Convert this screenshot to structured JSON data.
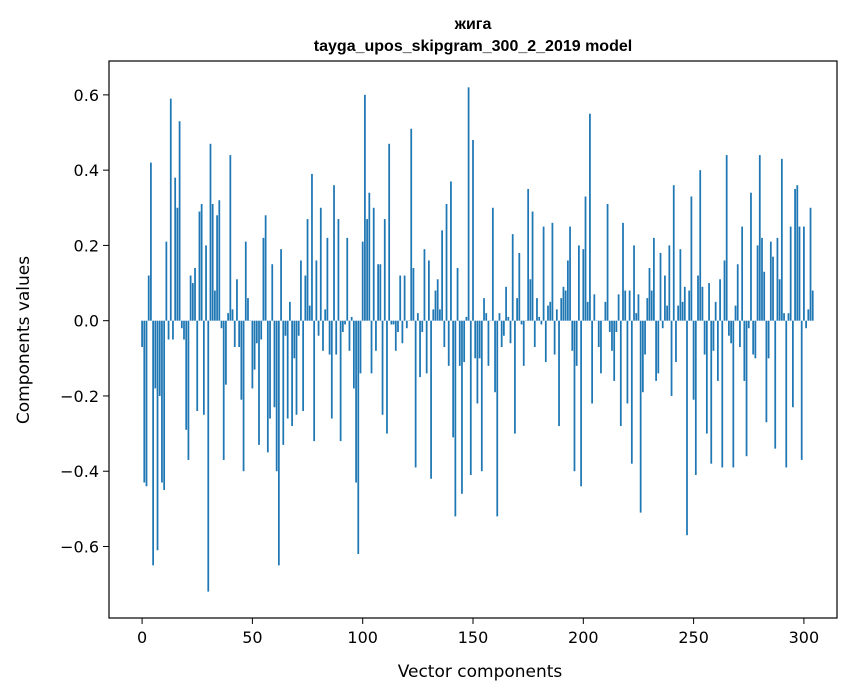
{
  "chart_data": {
    "type": "bar",
    "title": "жига",
    "subtitle": "tayga_upos_skipgram_300_2_2019 model",
    "xlabel": "Vector components",
    "ylabel": "Components values",
    "xlim": [
      -15,
      315
    ],
    "ylim": [
      -0.79,
      0.69
    ],
    "x_ticks": [
      0,
      50,
      100,
      150,
      200,
      250,
      300
    ],
    "x_tick_labels": [
      "0",
      "50",
      "100",
      "150",
      "200",
      "250",
      "300"
    ],
    "y_ticks": [
      -0.6,
      -0.4,
      -0.2,
      0.0,
      0.2,
      0.4,
      0.6
    ],
    "y_tick_labels": [
      "−0.6",
      "−0.4",
      "−0.2",
      "0.0",
      "0.2",
      "0.4",
      "0.6"
    ],
    "grid": false,
    "legend": "none",
    "bar_color": "#1f77b4",
    "values": [
      -0.07,
      -0.43,
      -0.44,
      0.12,
      0.42,
      -0.65,
      -0.18,
      -0.61,
      -0.2,
      -0.43,
      -0.45,
      0.21,
      -0.05,
      0.59,
      -0.05,
      0.38,
      0.3,
      0.53,
      -0.02,
      -0.05,
      -0.29,
      -0.37,
      0.12,
      0.1,
      0.14,
      -0.24,
      0.29,
      0.31,
      -0.25,
      0.2,
      -0.72,
      0.47,
      0.31,
      0.08,
      0.28,
      0.32,
      -0.02,
      -0.37,
      -0.17,
      0.02,
      0.44,
      0.03,
      -0.07,
      0.11,
      -0.07,
      -0.21,
      -0.4,
      0.21,
      0.06,
      0.0,
      -0.18,
      -0.13,
      -0.06,
      -0.33,
      -0.05,
      0.22,
      0.28,
      -0.35,
      -0.26,
      0.15,
      -0.23,
      -0.4,
      -0.65,
      0.19,
      -0.33,
      -0.04,
      -0.26,
      0.05,
      -0.28,
      -0.1,
      -0.25,
      -0.04,
      0.16,
      -0.24,
      0.12,
      0.27,
      0.04,
      0.39,
      -0.32,
      0.16,
      -0.04,
      0.3,
      -0.08,
      0.03,
      0.22,
      -0.09,
      -0.26,
      0.36,
      -0.09,
      0.27,
      -0.32,
      -0.03,
      -0.01,
      0.22,
      -0.08,
      0.01,
      -0.18,
      -0.43,
      -0.62,
      -0.14,
      0.21,
      0.6,
      0.27,
      0.34,
      -0.14,
      0.3,
      -0.08,
      0.15,
      0.15,
      -0.25,
      0.27,
      -0.3,
      0.47,
      -0.01,
      -0.01,
      -0.08,
      -0.03,
      0.12,
      -0.06,
      0.12,
      -0.02,
      0.0,
      0.51,
      0.14,
      -0.39,
      0.02,
      -0.15,
      -0.03,
      0.19,
      -0.14,
      0.16,
      -0.42,
      0.03,
      0.08,
      0.11,
      0.03,
      0.24,
      -0.07,
      0.31,
      -0.12,
      0.37,
      -0.31,
      -0.52,
      0.14,
      -0.12,
      -0.46,
      -0.11,
      0.01,
      0.62,
      -0.41,
      0.48,
      -0.1,
      -0.22,
      -0.1,
      -0.4,
      0.06,
      0.02,
      -0.12,
      0.0,
      0.3,
      -0.19,
      -0.52,
      0.02,
      -0.07,
      -0.04,
      0.09,
      0.01,
      -0.06,
      0.23,
      -0.3,
      0.06,
      0.18,
      -0.01,
      -0.12,
      0.0,
      0.35,
      0.11,
      0.29,
      -0.07,
      0.06,
      0.01,
      -0.01,
      0.25,
      -0.11,
      0.04,
      0.05,
      0.26,
      -0.09,
      0.03,
      -0.28,
      0.06,
      0.09,
      0.08,
      0.16,
      0.25,
      -0.08,
      -0.4,
      -0.12,
      0.2,
      -0.44,
      0.19,
      0.33,
      0.05,
      0.55,
      -0.22,
      0.07,
      0.0,
      -0.07,
      -0.14,
      0.0,
      0.05,
      0.31,
      -0.03,
      -0.08,
      -0.16,
      -0.03,
      0.07,
      -0.28,
      0.26,
      0.08,
      -0.22,
      0.08,
      -0.38,
      0.2,
      0.02,
      0.07,
      -0.51,
      -0.19,
      -0.09,
      0.06,
      0.14,
      0.08,
      0.22,
      -0.16,
      -0.14,
      0.18,
      -0.02,
      0.12,
      0.04,
      0.2,
      -0.2,
      0.36,
      -0.11,
      0.04,
      0.19,
      0.05,
      0.09,
      -0.57,
      0.08,
      0.33,
      -0.21,
      -0.41,
      0.12,
      0.4,
      0.09,
      -0.09,
      -0.3,
      0.1,
      -0.38,
      -0.08,
      0.05,
      -0.16,
      0.11,
      -0.39,
      0.16,
      0.44,
      -0.04,
      -0.06,
      -0.39,
      0.04,
      0.15,
      -0.07,
      0.25,
      -0.16,
      -0.36,
      -0.02,
      0.34,
      -0.09,
      -0.1,
      0.2,
      0.44,
      0.22,
      0.13,
      -0.27,
      -0.1,
      0.21,
      0.17,
      -0.34,
      0.22,
      0.11,
      0.43,
      0.02,
      -0.39,
      0.02,
      0.25,
      -0.23,
      0.35,
      0.36,
      0.25,
      -0.37,
      0.25,
      -0.02,
      0.03,
      0.3,
      0.08
    ]
  }
}
